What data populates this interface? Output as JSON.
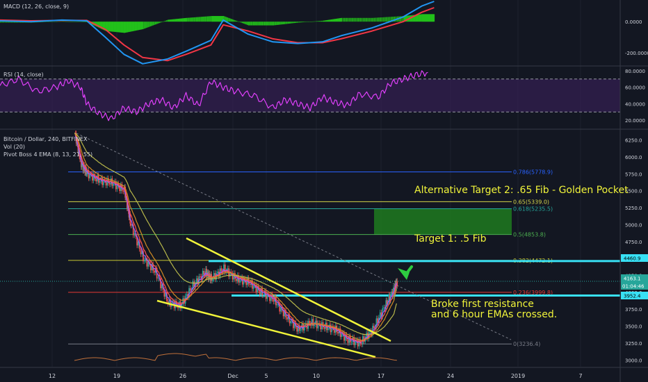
{
  "colors": {
    "background": "#131722",
    "grid": "#1e222d",
    "panel_border": "#363a45",
    "text": "#b2b5be",
    "axis_text": "#d1d4dc",
    "macd_line": "#2196f3",
    "signal_line": "#f23645",
    "hist": "#22c01a",
    "rsi_line": "#e040fb",
    "rsi_band": "#3b1f5c",
    "candle_up": "#26a69a",
    "candle_down": "#ef5350",
    "ema_purple": "#9b59ff",
    "ema_red": "#ff5252",
    "ema_orange": "#d18b24",
    "ema_yellow": "#b7b74a",
    "volume_ma": "#c0703a",
    "trendline": "#f1f43a",
    "annotation": "#f1f43a",
    "annotation_white": "#ffffff",
    "resistance": "#38e1f5",
    "target_box": "#1f7a1f",
    "arrow": "#2ecc40",
    "fib_786": "#2962ff",
    "fib_65": "#d4d44a",
    "fib_618": "#26a69a",
    "fib_5": "#4caf50",
    "fib_382": "#c8c832",
    "fib_236": "#e53935",
    "fib_0": "#787b86",
    "dashed_trend": "#787b86",
    "current_price": "#26a69a"
  },
  "macd": {
    "title": "MACD (12, 26, close, 9)",
    "axis_labels": [
      "0.0000",
      "-200.0000"
    ]
  },
  "rsi": {
    "title": "RSI (14, close)",
    "axis_labels": [
      "80.0000",
      "60.0000",
      "40.0000",
      "20.0000"
    ]
  },
  "main": {
    "title": "Bitcoin / Dollar, 240, BITFINEX",
    "vol_label": "Vol (20)",
    "ema_label": "Pivot Boss 4 EMA (8, 13, 21, 55)",
    "price_axis": [
      "6250.0",
      "6000.0",
      "5750.0",
      "5500.0",
      "5250.0",
      "5000.0",
      "4750.0",
      "4500.0",
      "4250.0",
      "4000.0",
      "3750.0",
      "3500.0",
      "3250.0",
      "3000.0"
    ],
    "price_tags": {
      "resistance_high": "4460.9",
      "current": "4163.1",
      "timer": "01:04:46",
      "resistance_low": "3952.4"
    }
  },
  "fib_levels": [
    {
      "label": "0.786(5778.9)",
      "price": 5778.9,
      "color_key": "fib_786"
    },
    {
      "label": "0.65(5339.0)",
      "price": 5339.0,
      "color_key": "fib_65"
    },
    {
      "label": "0.618(5235.5)",
      "price": 5235.5,
      "color_key": "fib_618"
    },
    {
      "label": "0.5(4853.8)",
      "price": 4853.8,
      "color_key": "fib_5"
    },
    {
      "label": "0.382(4472.1)",
      "price": 4472.1,
      "color_key": "fib_382"
    },
    {
      "label": "0.236(3999.8)",
      "price": 3999.8,
      "color_key": "fib_236"
    },
    {
      "label": "0(3236.4)",
      "price": 3236.4,
      "color_key": "fib_0"
    }
  ],
  "annotations": {
    "target2": "Alternative Target 2: .65 Fib - Golden Pocket",
    "target1": "Target 1: .5 Fib",
    "broke_line1": "Broke first resistance",
    "broke_line2": "and 6 hour EMAs crossed."
  },
  "x_axis": [
    "12",
    "19",
    "26",
    "Dec",
    "5",
    "10",
    "17",
    "24",
    "2019",
    "7"
  ],
  "chart_data": [
    {
      "type": "line",
      "title": "MACD (12, 26, close, 9)",
      "ylim": [
        -280,
        130
      ],
      "series_keys": [
        "MACD",
        "signal",
        "histogram"
      ],
      "x_ticks": [
        "12",
        "19",
        "26",
        "Dec",
        "5",
        "10",
        "17",
        "24",
        "2019",
        "7"
      ],
      "macd_points": [
        [
          0,
          5
        ],
        [
          0.05,
          0
        ],
        [
          0.1,
          10
        ],
        [
          0.14,
          5
        ],
        [
          0.17,
          -100
        ],
        [
          0.2,
          -210
        ],
        [
          0.23,
          -270
        ],
        [
          0.27,
          -240
        ],
        [
          0.3,
          -190
        ],
        [
          0.34,
          -120
        ],
        [
          0.36,
          10
        ],
        [
          0.4,
          -80
        ],
        [
          0.44,
          -130
        ],
        [
          0.48,
          -140
        ],
        [
          0.52,
          -130
        ],
        [
          0.55,
          -90
        ],
        [
          0.6,
          -40
        ],
        [
          0.65,
          30
        ],
        [
          0.68,
          100
        ],
        [
          0.7,
          130
        ]
      ],
      "signal_points": [
        [
          0,
          10
        ],
        [
          0.05,
          5
        ],
        [
          0.1,
          8
        ],
        [
          0.14,
          8
        ],
        [
          0.17,
          -50
        ],
        [
          0.2,
          -150
        ],
        [
          0.23,
          -230
        ],
        [
          0.27,
          -250
        ],
        [
          0.3,
          -210
        ],
        [
          0.34,
          -150
        ],
        [
          0.36,
          -20
        ],
        [
          0.4,
          -60
        ],
        [
          0.44,
          -110
        ],
        [
          0.48,
          -135
        ],
        [
          0.52,
          -135
        ],
        [
          0.55,
          -110
        ],
        [
          0.6,
          -60
        ],
        [
          0.65,
          0
        ],
        [
          0.68,
          60
        ],
        [
          0.7,
          90
        ]
      ]
    },
    {
      "type": "line",
      "title": "RSI (14, close)",
      "ylim": [
        10,
        85
      ],
      "band": [
        30,
        70
      ],
      "x_ticks": [
        "12",
        "19",
        "26",
        "Dec",
        "5",
        "10",
        "17",
        "24",
        "2019",
        "7"
      ],
      "points": [
        [
          0,
          62
        ],
        [
          0.03,
          70
        ],
        [
          0.06,
          55
        ],
        [
          0.09,
          60
        ],
        [
          0.11,
          68
        ],
        [
          0.13,
          60
        ],
        [
          0.14,
          40
        ],
        [
          0.16,
          28
        ],
        [
          0.18,
          22
        ],
        [
          0.2,
          35
        ],
        [
          0.22,
          30
        ],
        [
          0.24,
          40
        ],
        [
          0.26,
          45
        ],
        [
          0.28,
          35
        ],
        [
          0.3,
          50
        ],
        [
          0.32,
          38
        ],
        [
          0.34,
          67
        ],
        [
          0.36,
          60
        ],
        [
          0.38,
          55
        ],
        [
          0.41,
          50
        ],
        [
          0.44,
          35
        ],
        [
          0.46,
          45
        ],
        [
          0.48,
          40
        ],
        [
          0.5,
          35
        ],
        [
          0.52,
          48
        ],
        [
          0.54,
          42
        ],
        [
          0.56,
          38
        ],
        [
          0.58,
          52
        ],
        [
          0.61,
          48
        ],
        [
          0.63,
          65
        ],
        [
          0.65,
          70
        ],
        [
          0.67,
          75
        ],
        [
          0.69,
          78
        ]
      ]
    },
    {
      "type": "line",
      "title": "Bitcoin / Dollar, 240, BITFINEX",
      "ylim": [
        2900,
        6400
      ],
      "x_ticks": [
        "12",
        "19",
        "26",
        "Dec",
        "5",
        "10",
        "17",
        "24",
        "2019",
        "7"
      ],
      "price_points": [
        [
          0.12,
          6350
        ],
        [
          0.13,
          5900
        ],
        [
          0.14,
          5750
        ],
        [
          0.16,
          5650
        ],
        [
          0.18,
          5620
        ],
        [
          0.2,
          5500
        ],
        [
          0.21,
          5000
        ],
        [
          0.23,
          4500
        ],
        [
          0.25,
          4300
        ],
        [
          0.27,
          3850
        ],
        [
          0.29,
          3800
        ],
        [
          0.31,
          4100
        ],
        [
          0.33,
          4300
        ],
        [
          0.34,
          4200
        ],
        [
          0.36,
          4350
        ],
        [
          0.38,
          4200
        ],
        [
          0.4,
          4150
        ],
        [
          0.42,
          4000
        ],
        [
          0.44,
          3900
        ],
        [
          0.46,
          3650
        ],
        [
          0.48,
          3450
        ],
        [
          0.5,
          3550
        ],
        [
          0.52,
          3500
        ],
        [
          0.54,
          3450
        ],
        [
          0.56,
          3300
        ],
        [
          0.58,
          3250
        ],
        [
          0.6,
          3450
        ],
        [
          0.62,
          3800
        ],
        [
          0.635,
          4050
        ],
        [
          0.64,
          4163
        ]
      ],
      "resistance_levels": [
        4460.9,
        3952.4
      ],
      "target_zone": [
        4853.8,
        5235.5
      ]
    }
  ]
}
